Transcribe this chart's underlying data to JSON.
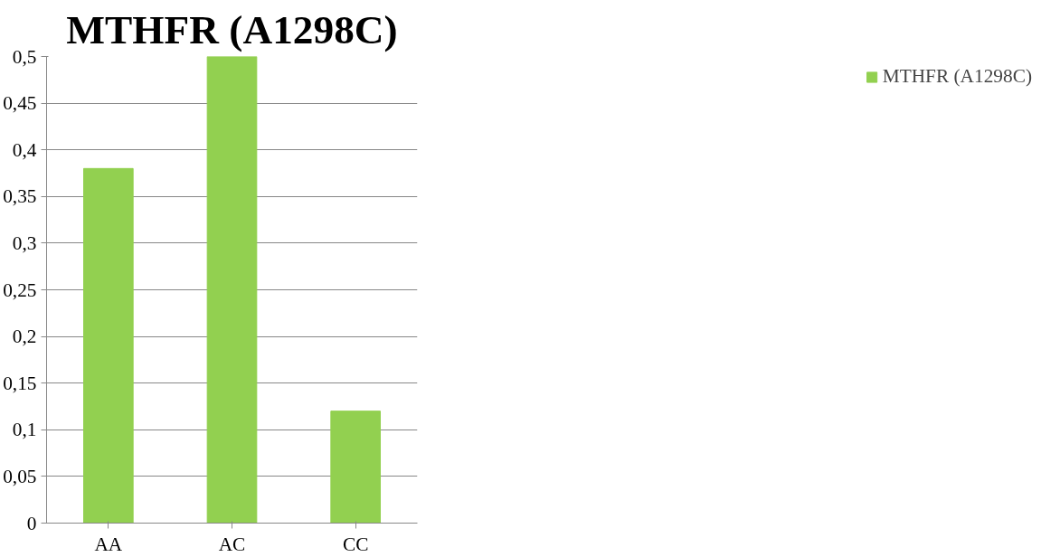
{
  "chart_data": {
    "type": "bar",
    "title": "MTHFR (A1298C)",
    "categories": [
      "AA",
      "AC",
      "CC"
    ],
    "series": [
      {
        "name": "MTHFR (A1298C)",
        "color": "#92d050",
        "values": [
          0.38,
          0.5,
          0.12
        ]
      }
    ],
    "ylim": [
      0,
      0.5
    ],
    "yticks": [
      0,
      {
        "value": 0.05,
        "label": "0,05"
      },
      {
        "value": 0.1,
        "label": "0,1"
      },
      {
        "value": 0.15,
        "label": "0,15"
      },
      {
        "value": 0.2,
        "label": "0,2"
      },
      {
        "value": 0.25,
        "label": "0,25"
      },
      {
        "value": 0.3,
        "label": "0,3"
      },
      {
        "value": 0.35,
        "label": "0,35"
      },
      {
        "value": 0.4,
        "label": "0,4"
      },
      {
        "value": 0.45,
        "label": "0,45"
      },
      {
        "value": 0.5,
        "label": "0,5"
      }
    ],
    "grid": "y",
    "legend": "right"
  }
}
